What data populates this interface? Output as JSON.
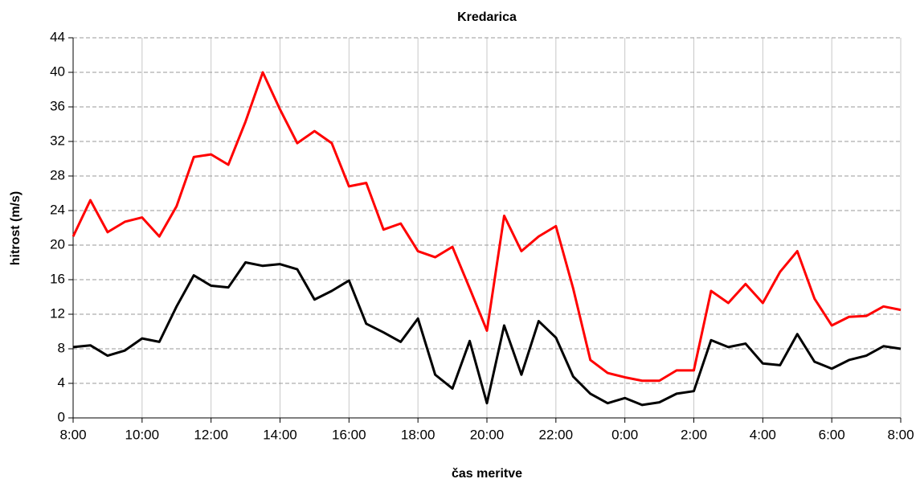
{
  "chart_data": {
    "type": "line",
    "title": "Kredarica",
    "xlabel": "čas meritve",
    "ylabel": "hitrost (m/s)",
    "categories": [
      "8:00",
      null,
      null,
      null,
      "10:00",
      null,
      null,
      null,
      "12:00",
      null,
      null,
      null,
      "14:00",
      null,
      null,
      null,
      "16:00",
      null,
      null,
      null,
      "18:00",
      null,
      null,
      null,
      "20:00",
      null,
      null,
      null,
      "22:00",
      null,
      null,
      null,
      "0:00",
      null,
      null,
      null,
      "2:00",
      null,
      null,
      null,
      "4:00",
      null,
      null,
      null,
      "6:00",
      null,
      null,
      null,
      "8:00"
    ],
    "series": [
      {
        "color": "#ff0000",
        "values": [
          21.0,
          25.2,
          21.5,
          22.7,
          23.2,
          21.0,
          24.5,
          30.2,
          30.5,
          29.3,
          34.3,
          40.0,
          35.7,
          31.8,
          33.2,
          31.8,
          26.8,
          27.2,
          21.8,
          22.5,
          19.3,
          18.6,
          19.8,
          15.0,
          10.1,
          23.4,
          19.3,
          21.0,
          22.2,
          15.0,
          6.7,
          5.2,
          4.7,
          4.3,
          4.3,
          5.5,
          5.5,
          14.7,
          13.3,
          15.5,
          13.3,
          16.9,
          19.3,
          13.8,
          10.7,
          11.7,
          11.8,
          12.9,
          12.5
        ]
      },
      {
        "color": "#000000",
        "values": [
          8.2,
          8.4,
          7.2,
          7.8,
          9.2,
          8.8,
          12.9,
          16.5,
          15.3,
          15.1,
          18.0,
          17.6,
          17.8,
          17.2,
          13.7,
          14.7,
          15.9,
          10.9,
          9.9,
          8.8,
          11.5,
          5.0,
          3.4,
          8.9,
          1.7,
          10.7,
          5.0,
          11.2,
          9.3,
          4.8,
          2.8,
          1.7,
          2.3,
          1.5,
          1.8,
          2.8,
          3.1,
          9.0,
          8.2,
          8.6,
          6.3,
          6.1,
          9.7,
          6.5,
          5.7,
          6.7,
          7.2,
          8.3,
          8.0
        ]
      }
    ],
    "ylim": [
      0,
      44
    ],
    "yticks": [
      0,
      4,
      8,
      12,
      16,
      20,
      24,
      28,
      32,
      36,
      40,
      44
    ],
    "grid": true
  }
}
